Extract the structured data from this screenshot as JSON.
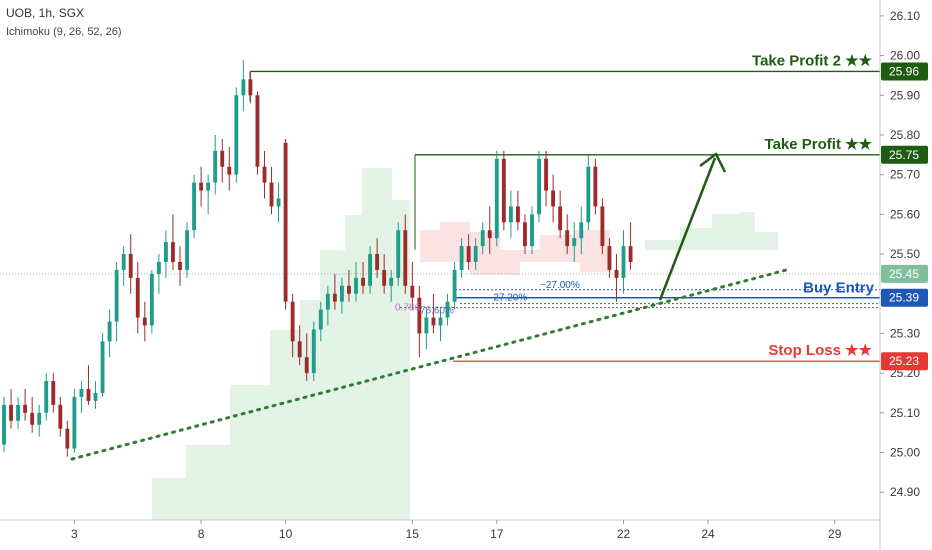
{
  "header": {
    "symbol": "UOB, 1h, SGX",
    "indicator": "Ichimoku (9, 26, 52, 26)"
  },
  "chart_data": {
    "type": "candlestick",
    "ylim": [
      24.83,
      26.14
    ],
    "y_ticks": [
      "26.10",
      "26.00",
      "25.90",
      "25.80",
      "25.70",
      "25.60",
      "25.50",
      "25.40",
      "25.30",
      "25.20",
      "25.10",
      "25.00",
      "24.90"
    ],
    "x_labels": [
      {
        "label": "3",
        "bar": 10
      },
      {
        "label": "8",
        "bar": 28
      },
      {
        "label": "10",
        "bar": 40
      },
      {
        "label": "15",
        "bar": 58
      },
      {
        "label": "17",
        "bar": 70
      },
      {
        "label": "22",
        "bar": 88
      },
      {
        "label": "24",
        "bar": 100
      },
      {
        "label": "29",
        "bar": 118
      }
    ],
    "total_bars": 125,
    "candles": [
      [
        25.02,
        25.14,
        25.0,
        25.12
      ],
      [
        25.12,
        25.16,
        25.06,
        25.08
      ],
      [
        25.08,
        25.14,
        25.06,
        25.12
      ],
      [
        25.12,
        25.16,
        25.08,
        25.1
      ],
      [
        25.1,
        25.14,
        25.05,
        25.07
      ],
      [
        25.07,
        25.12,
        25.04,
        25.1
      ],
      [
        25.1,
        25.2,
        25.08,
        25.18
      ],
      [
        25.18,
        25.2,
        25.1,
        25.12
      ],
      [
        25.12,
        25.14,
        25.04,
        25.06
      ],
      [
        25.06,
        25.08,
        24.99,
        25.01
      ],
      [
        25.01,
        25.16,
        25.0,
        25.14
      ],
      [
        25.14,
        25.18,
        25.1,
        25.16
      ],
      [
        25.16,
        25.22,
        25.12,
        25.13
      ],
      [
        25.13,
        25.18,
        25.11,
        25.15
      ],
      [
        25.15,
        25.3,
        25.14,
        25.28
      ],
      [
        25.28,
        25.36,
        25.24,
        25.33
      ],
      [
        25.33,
        25.48,
        25.28,
        25.46
      ],
      [
        25.46,
        25.52,
        25.42,
        25.5
      ],
      [
        25.5,
        25.55,
        25.4,
        25.44
      ],
      [
        25.44,
        25.48,
        25.3,
        25.34
      ],
      [
        25.34,
        25.38,
        25.28,
        25.32
      ],
      [
        25.32,
        25.46,
        25.3,
        25.45
      ],
      [
        25.45,
        25.5,
        25.4,
        25.48
      ],
      [
        25.48,
        25.56,
        25.44,
        25.53
      ],
      [
        25.53,
        25.6,
        25.46,
        25.48
      ],
      [
        25.48,
        25.52,
        25.42,
        25.46
      ],
      [
        25.46,
        25.58,
        25.44,
        25.56
      ],
      [
        25.56,
        25.7,
        25.54,
        25.68
      ],
      [
        25.68,
        25.72,
        25.62,
        25.66
      ],
      [
        25.66,
        25.7,
        25.6,
        25.68
      ],
      [
        25.68,
        25.8,
        25.65,
        25.76
      ],
      [
        25.76,
        25.79,
        25.68,
        25.72
      ],
      [
        25.72,
        25.77,
        25.66,
        25.7
      ],
      [
        25.7,
        25.92,
        25.68,
        25.9
      ],
      [
        25.9,
        25.99,
        25.86,
        25.94
      ],
      [
        25.94,
        25.96,
        25.88,
        25.9
      ],
      [
        25.9,
        25.91,
        25.7,
        25.72
      ],
      [
        25.72,
        25.76,
        25.64,
        25.68
      ],
      [
        25.68,
        25.72,
        25.6,
        25.62
      ],
      [
        25.62,
        25.68,
        25.58,
        25.64
      ],
      [
        25.78,
        25.79,
        25.36,
        25.38
      ],
      [
        25.38,
        25.4,
        25.24,
        25.28
      ],
      [
        25.28,
        25.32,
        25.22,
        25.24
      ],
      [
        25.24,
        25.3,
        25.18,
        25.2
      ],
      [
        25.2,
        25.33,
        25.18,
        25.31
      ],
      [
        25.31,
        25.38,
        25.28,
        25.36
      ],
      [
        25.36,
        25.42,
        25.32,
        25.4
      ],
      [
        25.4,
        25.45,
        25.36,
        25.38
      ],
      [
        25.38,
        25.44,
        25.35,
        25.42
      ],
      [
        25.42,
        25.46,
        25.38,
        25.4
      ],
      [
        25.4,
        25.48,
        25.38,
        25.44
      ],
      [
        25.44,
        25.48,
        25.4,
        25.42
      ],
      [
        25.42,
        25.52,
        25.4,
        25.5
      ],
      [
        25.5,
        25.54,
        25.44,
        25.46
      ],
      [
        25.46,
        25.5,
        25.4,
        25.42
      ],
      [
        25.42,
        25.46,
        25.38,
        25.44
      ],
      [
        25.44,
        25.58,
        25.42,
        25.56
      ],
      [
        25.56,
        25.6,
        25.4,
        25.42
      ],
      [
        25.42,
        25.48,
        25.36,
        25.39
      ],
      [
        25.39,
        25.42,
        25.24,
        25.3
      ],
      [
        25.3,
        25.36,
        25.26,
        25.34
      ],
      [
        25.34,
        25.4,
        25.3,
        25.32
      ],
      [
        25.32,
        25.36,
        25.28,
        25.34
      ],
      [
        25.34,
        25.4,
        25.32,
        25.38
      ],
      [
        25.38,
        25.48,
        25.36,
        25.46
      ],
      [
        25.46,
        25.54,
        25.44,
        25.52
      ],
      [
        25.52,
        25.55,
        25.46,
        25.48
      ],
      [
        25.48,
        25.54,
        25.46,
        25.52
      ],
      [
        25.52,
        25.58,
        25.5,
        25.56
      ],
      [
        25.56,
        25.62,
        25.5,
        25.54
      ],
      [
        25.54,
        25.76,
        25.52,
        25.74
      ],
      [
        25.74,
        25.76,
        25.56,
        25.58
      ],
      [
        25.58,
        25.66,
        25.54,
        25.62
      ],
      [
        25.62,
        25.66,
        25.56,
        25.58
      ],
      [
        25.58,
        25.6,
        25.5,
        25.52
      ],
      [
        25.52,
        25.62,
        25.5,
        25.6
      ],
      [
        25.6,
        25.76,
        25.58,
        25.74
      ],
      [
        25.74,
        25.76,
        25.62,
        25.66
      ],
      [
        25.66,
        25.7,
        25.58,
        25.62
      ],
      [
        25.62,
        25.66,
        25.54,
        25.56
      ],
      [
        25.56,
        25.6,
        25.5,
        25.52
      ],
      [
        25.52,
        25.58,
        25.48,
        25.54
      ],
      [
        25.54,
        25.62,
        25.5,
        25.58
      ],
      [
        25.58,
        25.75,
        25.56,
        25.72
      ],
      [
        25.72,
        25.74,
        25.6,
        25.62
      ],
      [
        25.62,
        25.64,
        25.5,
        25.52
      ],
      [
        25.52,
        25.54,
        25.44,
        25.46
      ],
      [
        25.46,
        25.5,
        25.38,
        25.44
      ],
      [
        25.44,
        25.56,
        25.4,
        25.52
      ],
      [
        25.52,
        25.58,
        25.46,
        25.48
      ]
    ],
    "cloud_green": [
      [
        0.14,
        0.13,
        0.12,
        0.11,
        0.1,
        0.09,
        0.08,
        0.08,
        0.08,
        0.08,
        0.09,
        0.1,
        0.11,
        0.12,
        0.13,
        0.14,
        0.15,
        0.16,
        0.17,
        0.18
      ],
      []
    ],
    "levels": {
      "tp2": 25.96,
      "tp1": 25.75,
      "entry": 25.39,
      "stop": 25.23,
      "last": 25.45
    },
    "annotations": {
      "tp2": "Take Profit 2 ★★",
      "tp1": "Take Profit ★★",
      "entry": "Buy Entry",
      "stop": "Stop Loss ★★",
      "pct1": "−27.00%",
      "pct2": "-27.20%",
      "fib_a": "0.786",
      "fib_b": "78.60%"
    },
    "price_pills": {
      "tp2": "25.96",
      "tp1": "25.75",
      "last": "25.45",
      "entry": "25.39",
      "stop": "25.23"
    },
    "colors": {
      "up": "#1f9c8a",
      "down": "#9c2b2b",
      "tp": "#1e5c12",
      "entry": "#1e58b4",
      "stop": "#e53935",
      "last": "#7fbf9e",
      "trend": "#2e7d32",
      "cloud_green": "#e3f3e6",
      "cloud_red": "#fbe3e3"
    }
  }
}
